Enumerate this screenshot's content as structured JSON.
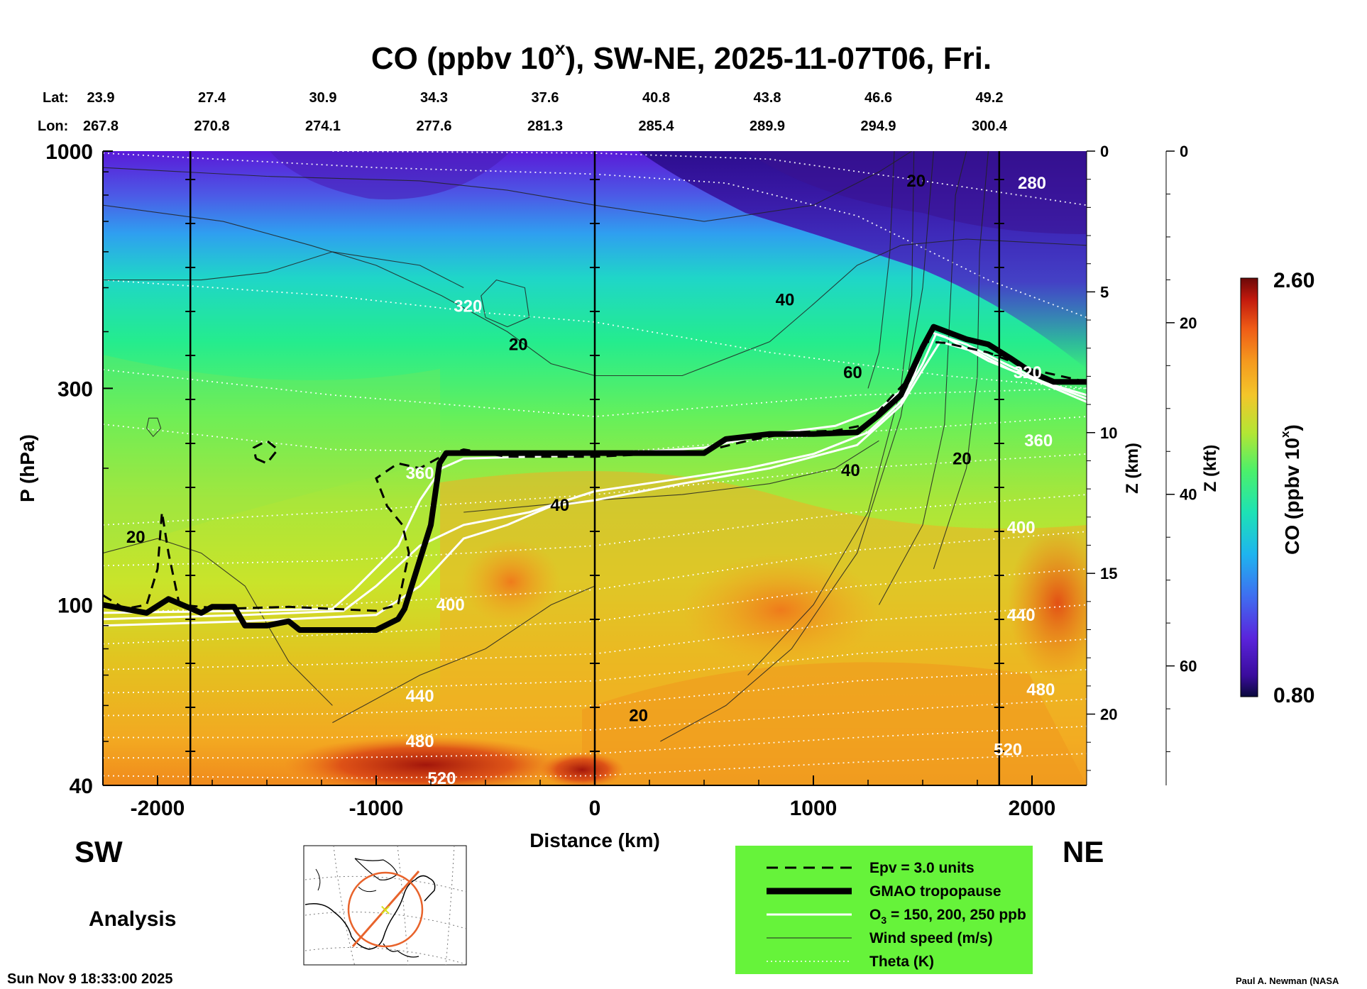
{
  "chart_data": {
    "type": "heatmap",
    "title": {
      "pre": "CO (ppbv 10",
      "sup": "x",
      "post": "), SW-NE, 2025-11-07T06, Fri."
    },
    "lat_label": "Lat:",
    "lon_label": "Lon:",
    "lat_ticks": [
      "23.9",
      "27.4",
      "30.9",
      "34.3",
      "37.6",
      "40.8",
      "43.8",
      "46.6",
      "49.2"
    ],
    "lon_ticks": [
      "267.8",
      "270.8",
      "274.1",
      "277.6",
      "281.3",
      "285.4",
      "289.9",
      "294.9",
      "300.4"
    ],
    "xlabel": "Distance (km)",
    "xlim": [
      -2250,
      2250
    ],
    "x_ticks": [
      -2000,
      -1000,
      0,
      1000,
      2000
    ],
    "x_tick_labels": [
      "-2000",
      "-1000",
      "0",
      "1000",
      "2000"
    ],
    "ylabel": "P (hPa)",
    "ylim": [
      1000,
      40
    ],
    "y_ticks": [
      40,
      100,
      300,
      1000
    ],
    "y_tick_labels": [
      "40",
      "100",
      "300",
      "1000"
    ],
    "z_km_label": "Z (km)",
    "z_km_ticks": [
      0,
      5,
      10,
      15,
      20
    ],
    "z_km_tick_labels": [
      "0",
      "5",
      "10",
      "15",
      "20"
    ],
    "z_kft_label": "Z (kft)",
    "z_kft_ticks": [
      0,
      20,
      40,
      60
    ],
    "z_kft_tick_labels": [
      "0",
      "20",
      "40",
      "60"
    ],
    "colorbar": {
      "label_pre": "CO (ppbv 10",
      "label_sup": "x",
      "label_post": ")",
      "min": 0.8,
      "max": 2.6,
      "min_label": "0.80",
      "max_label": "2.60"
    },
    "direction_left": "SW",
    "direction_right": "NE",
    "analysis_label": "Analysis",
    "timestamp": "Sun Nov  9 18:33:00 2025",
    "credit": "Paul A. Newman (NASA",
    "theta_labels": [
      {
        "text": "520",
        "x": -700,
        "p": 41.5
      },
      {
        "text": "520",
        "x": 1890,
        "p": 48
      },
      {
        "text": "480",
        "x": -800,
        "p": 50
      },
      {
        "text": "480",
        "x": 2040,
        "p": 65
      },
      {
        "text": "440",
        "x": -800,
        "p": 63
      },
      {
        "text": "440",
        "x": 1950,
        "p": 95
      },
      {
        "text": "400",
        "x": -660,
        "p": 100
      },
      {
        "text": "400",
        "x": 1950,
        "p": 148
      },
      {
        "text": "360",
        "x": -800,
        "p": 195
      },
      {
        "text": "360",
        "x": 2030,
        "p": 230
      },
      {
        "text": "320",
        "x": -580,
        "p": 455
      },
      {
        "text": "320",
        "x": 1980,
        "p": 325
      },
      {
        "text": "280",
        "x": 2000,
        "p": 850
      }
    ],
    "wind_labels": [
      {
        "text": "20",
        "x": -2100,
        "p": 141
      },
      {
        "text": "20",
        "x": 200,
        "p": 57
      },
      {
        "text": "40",
        "x": -160,
        "p": 166
      },
      {
        "text": "40",
        "x": 1170,
        "p": 198
      },
      {
        "text": "20",
        "x": 1680,
        "p": 210
      },
      {
        "text": "60",
        "x": 1180,
        "p": 325
      },
      {
        "text": "20",
        "x": -350,
        "p": 375
      },
      {
        "text": "40",
        "x": 870,
        "p": 470
      },
      {
        "text": "20",
        "x": 1470,
        "p": 860
      }
    ],
    "tropopause_hpa": [
      {
        "x": -2250,
        "p": 100
      },
      {
        "x": -2050,
        "p": 96
      },
      {
        "x": -1950,
        "p": 103
      },
      {
        "x": -1800,
        "p": 96
      },
      {
        "x": -1750,
        "p": 99
      },
      {
        "x": -1650,
        "p": 99
      },
      {
        "x": -1600,
        "p": 90
      },
      {
        "x": -1500,
        "p": 90
      },
      {
        "x": -1400,
        "p": 92
      },
      {
        "x": -1350,
        "p": 88
      },
      {
        "x": -1000,
        "p": 88
      },
      {
        "x": -900,
        "p": 93
      },
      {
        "x": -870,
        "p": 98
      },
      {
        "x": -750,
        "p": 150
      },
      {
        "x": -710,
        "p": 205
      },
      {
        "x": -680,
        "p": 216
      },
      {
        "x": -500,
        "p": 216
      },
      {
        "x": 0,
        "p": 216
      },
      {
        "x": 500,
        "p": 216
      },
      {
        "x": 600,
        "p": 232
      },
      {
        "x": 800,
        "p": 238
      },
      {
        "x": 1000,
        "p": 238
      },
      {
        "x": 1200,
        "p": 240
      },
      {
        "x": 1300,
        "p": 262
      },
      {
        "x": 1400,
        "p": 290
      },
      {
        "x": 1500,
        "p": 370
      },
      {
        "x": 1550,
        "p": 410
      },
      {
        "x": 1700,
        "p": 385
      },
      {
        "x": 1800,
        "p": 375
      },
      {
        "x": 1900,
        "p": 350
      },
      {
        "x": 2000,
        "p": 325
      },
      {
        "x": 2100,
        "p": 310
      },
      {
        "x": 2250,
        "p": 310
      }
    ],
    "legend": [
      {
        "key": "epv",
        "label": "Epv = 3.0 units"
      },
      {
        "key": "tropopause",
        "label": "GMAO tropopause"
      },
      {
        "key": "ozone",
        "label_pre": "O",
        "label_sub": "3",
        "label_post": " = 150, 200, 250 ppb"
      },
      {
        "key": "wind",
        "label": "Wind speed (m/s)"
      },
      {
        "key": "theta",
        "label": "Theta (K)"
      }
    ],
    "colors": {
      "legend_bg": "#66f33a",
      "tropopause": "#000000",
      "ozone": "#ffffff",
      "theta": "#ffffff",
      "wind": "#222222",
      "map_path": "#e8632b",
      "map_center": "#d7e21d"
    }
  }
}
